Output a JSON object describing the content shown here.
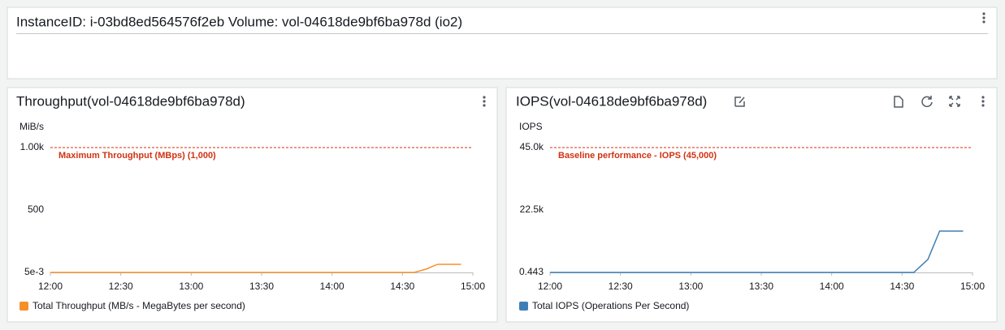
{
  "header": {
    "title": "InstanceID: i-03bd8ed564576f2eb Volume: vol-04618de9bf6ba978d (io2)"
  },
  "chart_data": [
    {
      "type": "line",
      "title": "Throughput(vol-04618de9bf6ba978d)",
      "ylabel": "MiB/s",
      "x": [
        "12:00",
        "14:35",
        "14:40",
        "14:45",
        "14:55"
      ],
      "series": [
        {
          "name": "Total Throughput (MB/s - MegaBytes per second)",
          "color": "#f5902b",
          "values": [
            0.005,
            0.005,
            26,
            65,
            65
          ]
        }
      ],
      "xlim": [
        "12:00",
        "15:00"
      ],
      "xticks": [
        "12:00",
        "12:30",
        "13:00",
        "13:30",
        "14:00",
        "14:30",
        "15:00"
      ],
      "ylim": [
        0.005,
        1000
      ],
      "yticks": [
        {
          "value": 0.005,
          "label": "5e-3"
        },
        500,
        {
          "value": 1000,
          "label": "1.00k"
        }
      ],
      "annotations": [
        {
          "label": "Maximum Throughput (MBps) (1,000)",
          "value": 1000,
          "color": "#d13212"
        }
      ]
    },
    {
      "type": "line",
      "title": "IOPS(vol-04618de9bf6ba978d)",
      "ylabel": "IOPS",
      "x": [
        "12:00",
        "14:35",
        "14:41",
        "14:46",
        "14:56"
      ],
      "series": [
        {
          "name": "Total IOPS (Operations Per Second)",
          "color": "#3f7fb5",
          "values": [
            0.443,
            0.443,
            4700,
            14900,
            14900
          ]
        }
      ],
      "xlim": [
        "12:00",
        "15:00"
      ],
      "xticks": [
        "12:00",
        "12:30",
        "13:00",
        "13:30",
        "14:00",
        "14:30",
        "15:00"
      ],
      "ylim": [
        0.443,
        45000
      ],
      "yticks": [
        {
          "value": 0.443,
          "label": "0.443"
        },
        {
          "value": 22500,
          "label": "22.5k"
        },
        {
          "value": 45000,
          "label": "45.0k"
        }
      ],
      "annotations": [
        {
          "label": "Baseline performance - IOPS (45,000)",
          "value": 45000,
          "color": "#d13212"
        }
      ]
    }
  ]
}
